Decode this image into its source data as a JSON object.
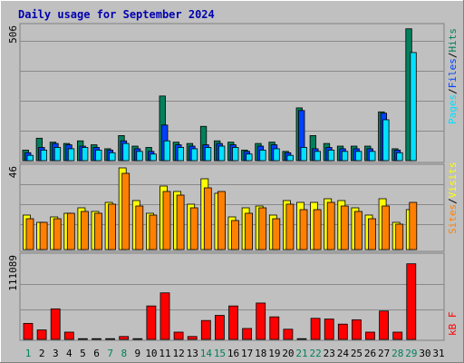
{
  "title": "Daily usage for September 2024",
  "colors": {
    "title": "#0000b0",
    "hits": "#00805c",
    "files": "#0040ff",
    "pages": "#00e0ff",
    "visits": "#ffff00",
    "sites": "#ff8000",
    "kbytes": "#ff0000",
    "weekday": "#000000",
    "weekend": "#00805c",
    "sep_black": "#000000"
  },
  "right_labels": {
    "top": [
      "Pages",
      "/",
      "Files",
      "/",
      "Hits"
    ],
    "middle": [
      "Sites",
      "/",
      "Visits"
    ],
    "bottom": [
      "kB F"
    ]
  },
  "chart_data": [
    {
      "type": "bar",
      "panel": "top",
      "axis_max_label": "506",
      "ylim": [
        0,
        506
      ],
      "categories": [
        "1",
        "2",
        "3",
        "4",
        "5",
        "6",
        "7",
        "8",
        "9",
        "10",
        "11",
        "12",
        "13",
        "14",
        "15",
        "16",
        "17",
        "18",
        "19",
        "20",
        "21",
        "22",
        "23",
        "24",
        "25",
        "26",
        "27",
        "28",
        "29",
        "30",
        "31"
      ],
      "series": [
        {
          "name": "Hits",
          "values": [
            40,
            85,
            70,
            65,
            75,
            60,
            45,
            95,
            55,
            50,
            245,
            70,
            65,
            130,
            75,
            70,
            40,
            65,
            70,
            35,
            200,
            95,
            65,
            55,
            55,
            55,
            185,
            45,
            500,
            0,
            0
          ]
        },
        {
          "name": "Files",
          "values": [
            30,
            50,
            65,
            60,
            55,
            50,
            40,
            75,
            45,
            35,
            135,
            60,
            55,
            60,
            65,
            60,
            35,
            55,
            60,
            30,
            190,
            45,
            50,
            45,
            45,
            45,
            180,
            40,
            0,
            0,
            0
          ]
        },
        {
          "name": "Pages",
          "values": [
            20,
            40,
            50,
            45,
            50,
            40,
            30,
            65,
            35,
            25,
            75,
            50,
            45,
            50,
            55,
            50,
            25,
            40,
            45,
            20,
            50,
            35,
            40,
            35,
            35,
            35,
            155,
            30,
            410,
            0,
            0
          ]
        }
      ]
    },
    {
      "type": "bar",
      "panel": "middle",
      "axis_max_label": "46",
      "ylim": [
        0,
        46
      ],
      "categories": [
        "1",
        "2",
        "3",
        "4",
        "5",
        "6",
        "7",
        "8",
        "9",
        "10",
        "11",
        "12",
        "13",
        "14",
        "15",
        "16",
        "17",
        "18",
        "19",
        "20",
        "21",
        "22",
        "23",
        "24",
        "25",
        "26",
        "27",
        "28",
        "29",
        "30",
        "31"
      ],
      "series": [
        {
          "name": "Visits",
          "values": [
            19,
            15,
            18,
            20,
            23,
            21,
            26,
            45,
            27,
            20,
            35,
            32,
            25,
            39,
            31,
            18,
            23,
            24,
            19,
            27,
            26,
            26,
            28,
            27,
            23,
            19,
            28,
            15,
            22,
            0,
            0
          ]
        },
        {
          "name": "Sites",
          "values": [
            17,
            15,
            17,
            20,
            21,
            20,
            25,
            42,
            24,
            19,
            32,
            30,
            23,
            34,
            32,
            16,
            20,
            23,
            17,
            25,
            22,
            22,
            26,
            24,
            21,
            17,
            24,
            14,
            26,
            0,
            0
          ]
        }
      ]
    },
    {
      "type": "bar",
      "panel": "bottom",
      "axis_max_label": "111089",
      "ylim": [
        0,
        111089
      ],
      "categories": [
        "1",
        "2",
        "3",
        "4",
        "5",
        "6",
        "7",
        "8",
        "9",
        "10",
        "11",
        "12",
        "13",
        "14",
        "15",
        "16",
        "17",
        "18",
        "19",
        "20",
        "21",
        "22",
        "23",
        "24",
        "25",
        "26",
        "27",
        "28",
        "29",
        "30",
        "31"
      ],
      "series": [
        {
          "name": "kB F",
          "values": [
            22000,
            13000,
            42000,
            10000,
            1000,
            1000,
            1000,
            4000,
            1000,
            46000,
            64000,
            10000,
            4000,
            26000,
            33000,
            46000,
            15000,
            50000,
            31000,
            14000,
            1000,
            29000,
            28000,
            21000,
            27000,
            10000,
            39000,
            10000,
            104000,
            0,
            0
          ]
        }
      ]
    }
  ],
  "day_labels": [
    "1",
    "2",
    "3",
    "4",
    "5",
    "6",
    "7",
    "8",
    "9",
    "10",
    "11",
    "12",
    "13",
    "14",
    "15",
    "16",
    "17",
    "18",
    "19",
    "20",
    "21",
    "22",
    "23",
    "24",
    "25",
    "26",
    "27",
    "28",
    "29",
    "30",
    "31"
  ],
  "weekend_days": [
    "1",
    "7",
    "8",
    "14",
    "15",
    "21",
    "22",
    "28",
    "29"
  ]
}
